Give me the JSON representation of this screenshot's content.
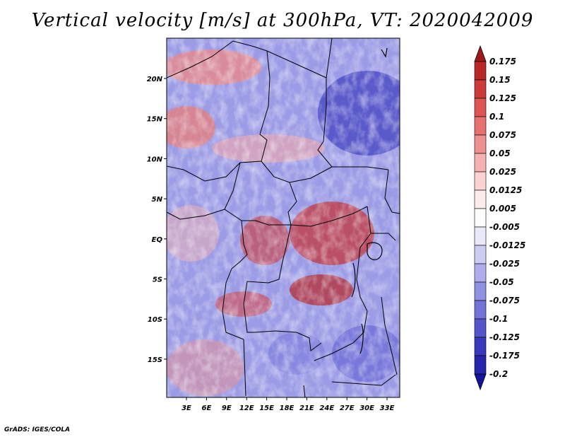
{
  "title": "Vertical velocity [m/s] at 300hPa, VT: 2020042009",
  "credit": "GrADS: IGES/COLA",
  "map": {
    "lat_ticks": [
      "20N",
      "15N",
      "10N",
      "5N",
      "EQ",
      "5S",
      "10S",
      "15S"
    ],
    "lon_ticks": [
      "3E",
      "6E",
      "9E",
      "12E",
      "15E",
      "18E",
      "21E",
      "24E",
      "27E",
      "30E",
      "33E"
    ]
  },
  "colorbar": {
    "labels": [
      "0.175",
      "0.15",
      "0.125",
      "0.1",
      "0.075",
      "0.05",
      "0.025",
      "0.0125",
      "0.005",
      "-0.005",
      "-0.0125",
      "-0.025",
      "-0.05",
      "-0.075",
      "-0.1",
      "-0.125",
      "-0.175",
      "-0.2"
    ],
    "colors": [
      "#a01818",
      "#b82626",
      "#cc3a3a",
      "#dc5454",
      "#e67070",
      "#ef9090",
      "#f6b2b2",
      "#fbd2d2",
      "#fdeaea",
      "#ffffff",
      "#e8e8f8",
      "#ccccf2",
      "#aeaeec",
      "#9090e2",
      "#7272d8",
      "#5454cc",
      "#3838bc",
      "#2424aa",
      "#14149a"
    ]
  }
}
